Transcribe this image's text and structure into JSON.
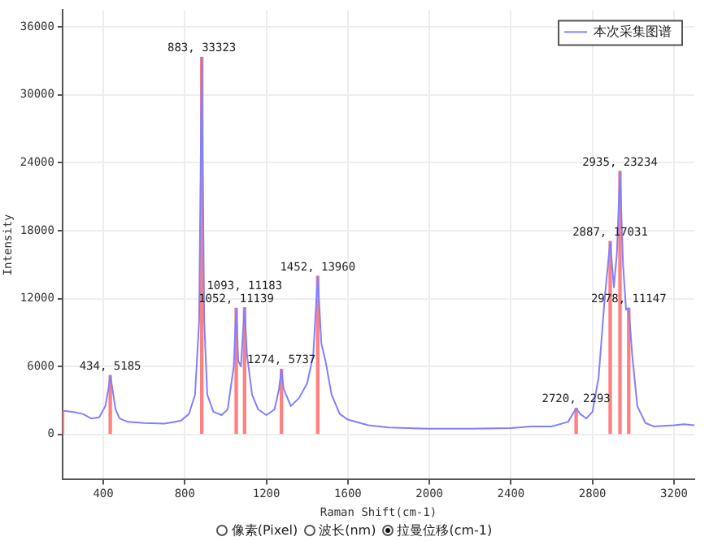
{
  "chart_data": {
    "type": "line",
    "xlabel": "Raman Shift(cm-1)",
    "ylabel": "Intensity",
    "xlim": [
      200,
      3300
    ],
    "xticks": [
      400,
      800,
      1200,
      1600,
      2000,
      2400,
      2800,
      3200
    ],
    "ylim": [
      -4000,
      37500
    ],
    "yticks": [
      0,
      6000,
      12000,
      18000,
      24000,
      30000,
      36000
    ],
    "grid": true,
    "legend": "top right",
    "marker": "none",
    "line_style": "solid",
    "annotations": [
      "像素(Pixel)",
      "波长(nm)",
      "拉曼位移(cm-1)"
    ],
    "series": [
      {
        "name": "本次采集图谱",
        "color": "#8080ff",
        "x": [
          200,
          260,
          300,
          340,
          380,
          410,
          425,
          434,
          445,
          460,
          480,
          520,
          600,
          700,
          780,
          820,
          850,
          870,
          883,
          895,
          910,
          940,
          980,
          1010,
          1040,
          1052,
          1062,
          1075,
          1093,
          1105,
          1130,
          1160,
          1200,
          1240,
          1262,
          1274,
          1285,
          1320,
          1360,
          1400,
          1430,
          1452,
          1470,
          1490,
          1520,
          1560,
          1600,
          1700,
          1800,
          2000,
          2200,
          2400,
          2500,
          2600,
          2680,
          2720,
          2740,
          2770,
          2800,
          2830,
          2860,
          2887,
          2905,
          2920,
          2935,
          2950,
          2965,
          2978,
          2995,
          3020,
          3060,
          3100,
          3200,
          3250,
          3300
        ],
        "values": [
          2100,
          1950,
          1800,
          1400,
          1500,
          2500,
          4000,
          5185,
          4000,
          2200,
          1400,
          1100,
          1000,
          950,
          1200,
          1800,
          3500,
          10000,
          33323,
          10000,
          3500,
          2000,
          1700,
          2200,
          6000,
          11139,
          6500,
          6000,
          11183,
          7000,
          3500,
          2200,
          1700,
          2200,
          4000,
          5737,
          4000,
          2500,
          3200,
          4500,
          7000,
          13960,
          8000,
          6500,
          3500,
          1800,
          1300,
          800,
          600,
          500,
          500,
          550,
          700,
          700,
          1100,
          2293,
          1800,
          1400,
          2000,
          5000,
          12000,
          17031,
          13000,
          16000,
          23234,
          15000,
          11000,
          11147,
          7000,
          2500,
          1000,
          700,
          800,
          900,
          800
        ]
      },
      {
        "type": "bar",
        "color": "#ff8080",
        "x": [
          200,
          434,
          883,
          1052,
          1093,
          1274,
          1452,
          2720,
          2887,
          2935,
          2978
        ],
        "values": [
          2100,
          5185,
          33323,
          11139,
          11183,
          5737,
          13960,
          2293,
          17031,
          23234,
          11147
        ],
        "value_labels": [
          null,
          "434, 5185",
          "883, 33323",
          "1052, 11139",
          "1093, 11183",
          "1274, 5737",
          "1452, 13960",
          "2720, 2293",
          "2887, 17031",
          "2935, 23234",
          "2978, 11147"
        ]
      }
    ]
  }
}
